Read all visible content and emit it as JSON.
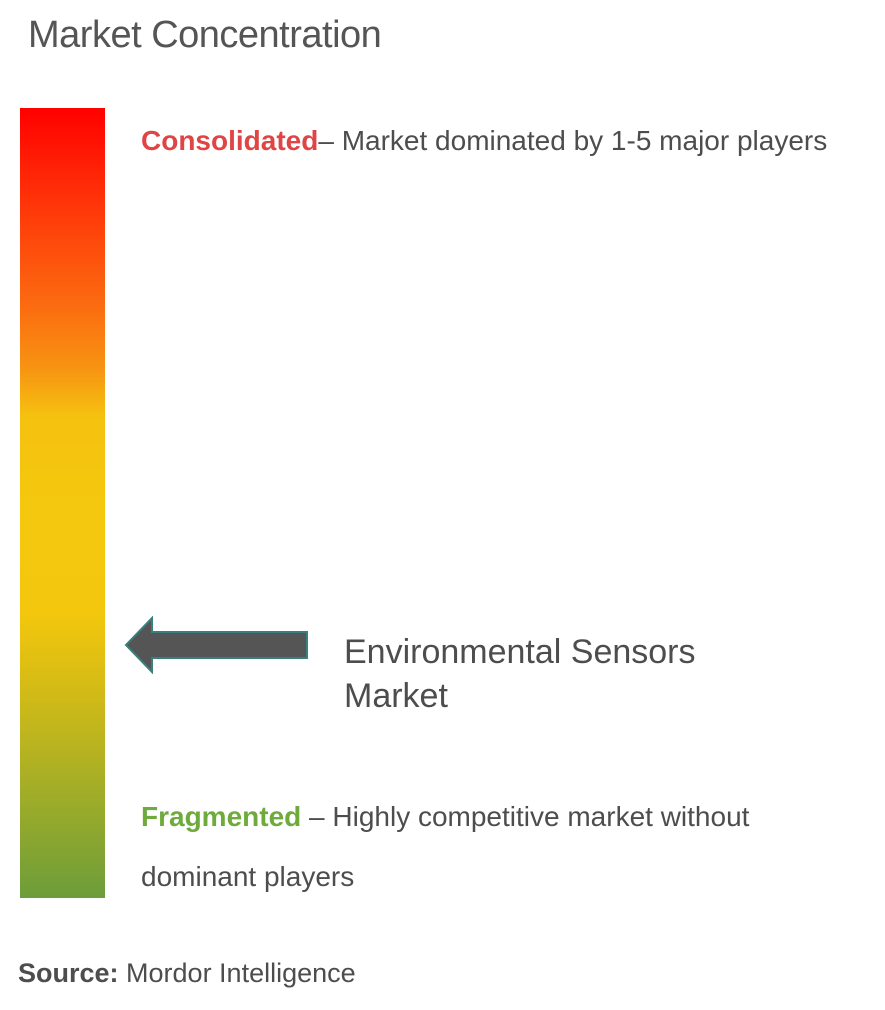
{
  "title": "Market Concentration",
  "scale": {
    "top": {
      "keyword": "Consolidated",
      "description": "– Market dominated by 1-5 major players"
    },
    "bottom": {
      "keyword": "Fragmented",
      "description": " – Highly competitive market without dominant players"
    }
  },
  "marker": {
    "label_line1": "Environmental Sensors",
    "label_line2": "Market"
  },
  "source": {
    "label": "Source:",
    "value": " Mordor Intelligence"
  },
  "colors": {
    "consolidated": "#e04545",
    "fragmented": "#6eaa3c",
    "arrow_fill": "#555555",
    "arrow_outline": "#3a7f7f"
  }
}
